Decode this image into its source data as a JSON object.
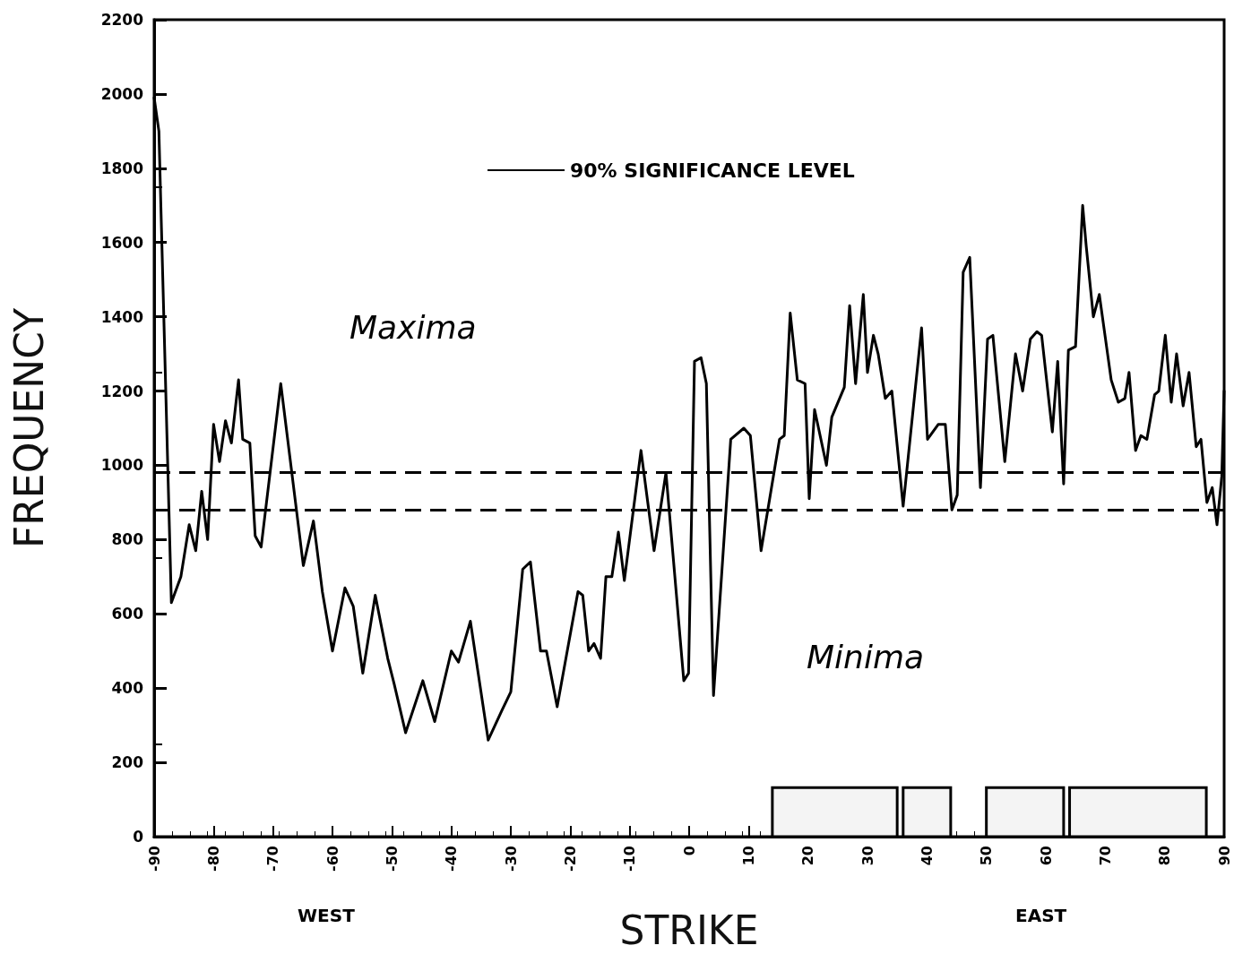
{
  "chart_data": {
    "type": "line",
    "xlabel": "STRIKE",
    "ylabel": "FREQUENCY",
    "annotations": [
      "90% SIGNIFICANCE LEVEL",
      "Maxima",
      "Minima",
      "WEST",
      "EAST"
    ],
    "series": [
      {
        "color": "#000000",
        "x": [
          -90,
          -89.2,
          -87.1,
          -85.5,
          -84.1,
          -83,
          -82,
          -81,
          -80,
          -79,
          -78,
          -77,
          -75.8,
          -75.1,
          -73.9,
          -73,
          -72,
          -68.7,
          -64.9,
          -63.2,
          -61.7,
          -60,
          -57.9,
          -56.5,
          -54.9,
          -52.8,
          -50.7,
          -49.6,
          -47.7,
          -44.8,
          -42.8,
          -40,
          -38.8,
          -36.8,
          -33.8,
          -31.5,
          -30,
          -28,
          -26.7,
          -25,
          -24,
          -22.2,
          -18.7,
          -17.9,
          -16.9,
          -16,
          -14.9,
          -14,
          -13,
          -11.9,
          -10.9,
          -8.1,
          -5.9,
          -3.9,
          -0.9,
          -0.1,
          0.9,
          2,
          2.9,
          4.1,
          7,
          9.2,
          10.3,
          12.1,
          15.2,
          16,
          17,
          18.2,
          19.5,
          20.2,
          21.1,
          23.1,
          24,
          26.1,
          27,
          28,
          29.3,
          30,
          31,
          31.8,
          33,
          34.1,
          36,
          39.1,
          40.1,
          41.9,
          43.1,
          44.2,
          45.1,
          46.1,
          47.2,
          49,
          50.2,
          51.1,
          53.1,
          54.9,
          56.1,
          57.4,
          58.5,
          59.3,
          61.1,
          62,
          63,
          63.8,
          65,
          66.2,
          66.8,
          68,
          69,
          71,
          72.2,
          73.3,
          74,
          75.1,
          76,
          77,
          78.3,
          79,
          80.1,
          81.1,
          82,
          83.1,
          84.1,
          85.3,
          86.1,
          87.1,
          88,
          88.8,
          89.6,
          90
        ],
        "values": [
          1990,
          1900,
          630,
          700,
          840,
          770,
          930,
          800,
          1110,
          1010,
          1120,
          1060,
          1230,
          1070,
          1060,
          810,
          780,
          1220,
          730,
          850,
          660,
          500,
          670,
          620,
          440,
          650,
          480,
          410,
          280,
          420,
          310,
          500,
          470,
          580,
          260,
          340,
          390,
          720,
          740,
          500,
          500,
          350,
          660,
          650,
          500,
          520,
          480,
          700,
          700,
          820,
          690,
          1040,
          770,
          980,
          420,
          440,
          1280,
          1290,
          1220,
          380,
          1070,
          1100,
          1080,
          770,
          1070,
          1080,
          1410,
          1230,
          1220,
          910,
          1150,
          1000,
          1130,
          1210,
          1430,
          1220,
          1460,
          1250,
          1350,
          1300,
          1180,
          1200,
          890,
          1370,
          1070,
          1110,
          1110,
          880,
          920,
          1520,
          1560,
          940,
          1340,
          1350,
          1010,
          1300,
          1200,
          1340,
          1360,
          1350,
          1090,
          1280,
          950,
          1310,
          1320,
          1700,
          1590,
          1400,
          1460,
          1230,
          1170,
          1180,
          1250,
          1040,
          1080,
          1070,
          1190,
          1200,
          1350,
          1170,
          1300,
          1160,
          1250,
          1050,
          1070,
          900,
          940,
          840,
          970,
          1200
        ]
      }
    ],
    "xlim": [
      -90,
      90
    ],
    "xticks": [
      -90,
      -80,
      -70,
      -60,
      -50,
      -40,
      -30,
      -20,
      -10,
      0,
      10,
      20,
      30,
      40,
      50,
      60,
      70,
      80,
      90
    ],
    "ylim": [
      0,
      2200
    ],
    "yticks": [
      0,
      200,
      400,
      600,
      800,
      1000,
      1200,
      1400,
      1600,
      1800,
      2000,
      2200
    ],
    "ref_lines": [
      {
        "axis": "y",
        "value": 980,
        "line_style": "dashed"
      },
      {
        "axis": "y",
        "value": 880,
        "line_style": "dashed"
      }
    ],
    "bands": [
      {
        "axis": "x",
        "from": 14,
        "to": 35
      },
      {
        "axis": "x",
        "from": 36,
        "to": 44
      },
      {
        "axis": "x",
        "from": 50,
        "to": 63
      },
      {
        "axis": "x",
        "from": 64,
        "to": 87
      }
    ],
    "grid": false,
    "marker": "none",
    "line_style": "solid"
  }
}
